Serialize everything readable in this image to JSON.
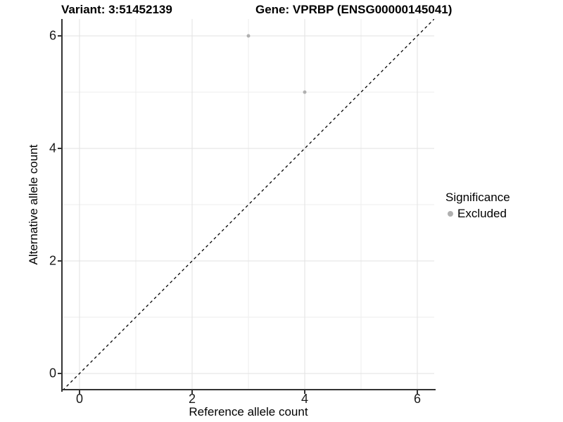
{
  "titles": {
    "left": "Variant: 3:51452139",
    "right": "Gene: VPRBP (ENSG00000145041)"
  },
  "chart_data": {
    "type": "scatter",
    "title": "Variant: 3:51452139 / Gene: VPRBP (ENSG00000145041)",
    "xlabel": "Reference allele count",
    "ylabel": "Alternative allele count",
    "xlim": [
      -0.3,
      6.3
    ],
    "ylim": [
      -0.3,
      6.3
    ],
    "x_ticks": [
      0,
      2,
      4,
      6
    ],
    "y_ticks": [
      0,
      2,
      4,
      6
    ],
    "x_minor_ticks": [
      1,
      3,
      5
    ],
    "y_minor_ticks": [
      1,
      3,
      5
    ],
    "grid": true,
    "series": [
      {
        "name": "Excluded",
        "color": "#b0b0b0",
        "point_radius": 2.5,
        "points": [
          {
            "x": 3,
            "y": 6
          },
          {
            "x": 4,
            "y": 5
          }
        ]
      }
    ],
    "reference_line": {
      "kind": "identity",
      "style": "dashed",
      "color": "#000000"
    },
    "legend": {
      "position": "right",
      "title": "Significance",
      "items": [
        {
          "label": "Excluded",
          "color": "#b0b0b0"
        }
      ]
    }
  },
  "colors": {
    "background": "#ffffff",
    "axis_line": "#333333",
    "axis_text": "#1a1a1a",
    "grid_major": "#e2e2e2",
    "grid_minor": "#ededed",
    "point": "#b0b0b0",
    "identity_line": "#000000"
  }
}
